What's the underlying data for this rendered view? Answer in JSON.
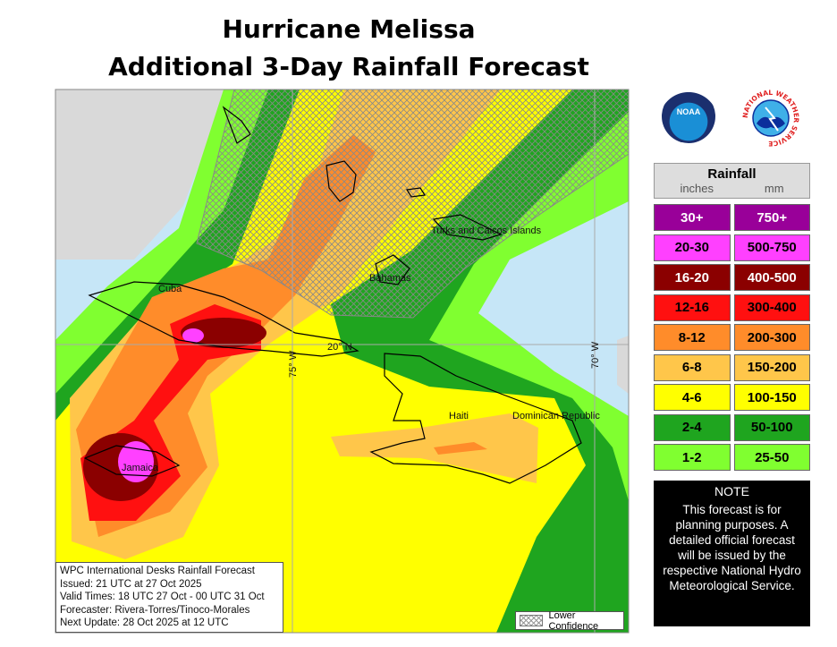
{
  "title": {
    "line1": "Hurricane Melissa",
    "line2": "Additional 3-Day Rainfall Forecast"
  },
  "map": {
    "labels": {
      "cuba": "Cuba",
      "bahamas": "Bahamas",
      "turks": "Turks and Caicos Islands",
      "haiti": "Haiti",
      "dr": "Dominican Republic",
      "jamaica": "Jamaica",
      "lat20": "20° N",
      "lon75": "75° W",
      "lon70": "70° W"
    },
    "colors": {
      "ocean": "#c6e6f7",
      "land_outside": "#d9d9d9"
    }
  },
  "info": {
    "line1": "WPC International Desks Rainfall Forecast",
    "line2": "Issued: 21 UTC at 27 Oct 2025",
    "line3": "Valid Times: 18 UTC 27 Oct - 00 UTC 31 Oct",
    "line4": "Forecaster: Rivera-Torres/Tinoco-Morales",
    "line5": "Next Update: 28 Oct 2025 at 12 UTC"
  },
  "lower_confidence": "Lower Confidence",
  "logos": {
    "noaa": "NOAA",
    "nws": "NATIONAL WEATHER SERVICE"
  },
  "legend": {
    "title": "Rainfall",
    "inches_label": "inches",
    "mm_label": "mm",
    "rows": [
      {
        "inches": "30+",
        "mm": "750+",
        "color": "#990099",
        "text": "#fff"
      },
      {
        "inches": "20-30",
        "mm": "500-750",
        "color": "#ff40ff",
        "text": "#000"
      },
      {
        "inches": "16-20",
        "mm": "400-500",
        "color": "#8b0000",
        "text": "#fff"
      },
      {
        "inches": "12-16",
        "mm": "300-400",
        "color": "#ff1010",
        "text": "#000"
      },
      {
        "inches": "8-12",
        "mm": "200-300",
        "color": "#ff8c2a",
        "text": "#000"
      },
      {
        "inches": "6-8",
        "mm": "150-200",
        "color": "#ffc64a",
        "text": "#000"
      },
      {
        "inches": "4-6",
        "mm": "100-150",
        "color": "#ffff00",
        "text": "#000"
      },
      {
        "inches": "2-4",
        "mm": "50-100",
        "color": "#1fa51f",
        "text": "#000"
      },
      {
        "inches": "1-2",
        "mm": "25-50",
        "color": "#80ff30",
        "text": "#000"
      }
    ]
  },
  "note": {
    "title": "NOTE",
    "text": "This forecast is for planning purposes. A detailed official forecast will be issued by the respective National Hydro Meteorological Service."
  }
}
